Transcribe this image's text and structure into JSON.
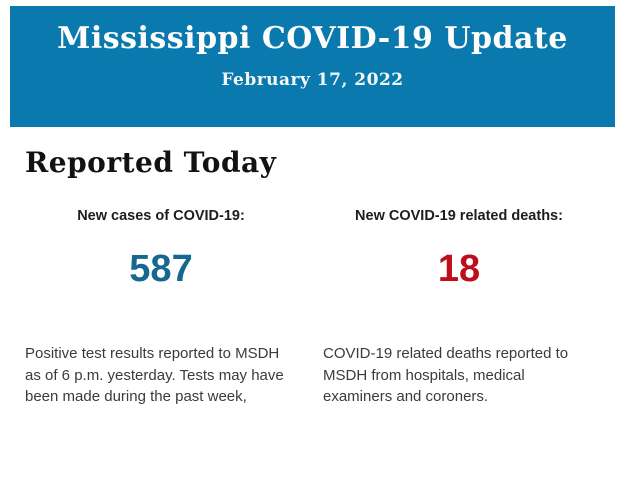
{
  "banner": {
    "title": "Mississippi COVID-19 Update",
    "date": "February 17, 2022",
    "background_color": "#0a79ae",
    "text_color": "#ffffff"
  },
  "report": {
    "heading": "Reported Today",
    "stats": [
      {
        "label": "New cases of COVID-19:",
        "value": "587",
        "value_color": "#17688f",
        "description": "Positive test results reported to MSDH as of 6 p.m. yesterday. Tests may have been made during the past week,"
      },
      {
        "label": "New COVID-19 related deaths:",
        "value": "18",
        "value_color": "#c00d1c",
        "description": "COVID-19 related deaths reported to MSDH from hospitals, medical examiners and coroners."
      }
    ]
  }
}
